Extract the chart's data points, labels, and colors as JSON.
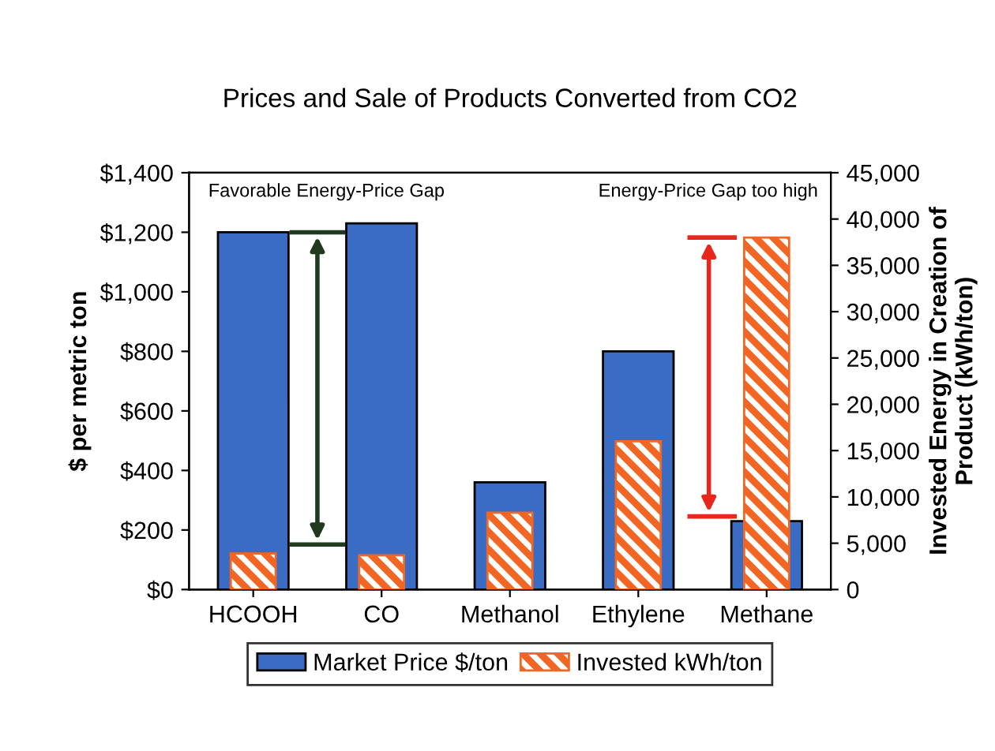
{
  "chart_data": {
    "type": "bar",
    "title": "Prices and Sale of Products Converted from CO2",
    "ylabel": "$ per metric ton",
    "y2label": "Invested Energy in Creation of\nProduct (kWh/ton)",
    "categories": [
      "HCOOH",
      "CO",
      "Methanol",
      "Ethylene",
      "Methane"
    ],
    "series": [
      {
        "name": "Market Price $/ton",
        "color": "#3b6cc4",
        "values": [
          1200,
          1230,
          360,
          800,
          230
        ]
      },
      {
        "name": "Invested kWh/ton",
        "color": "#f26522",
        "axis": "y2",
        "values": [
          3900,
          3700,
          8300,
          16000,
          38000
        ]
      }
    ],
    "ylim": [
      0,
      1400
    ],
    "yticks": [
      {
        "value": 0,
        "label": "$0"
      },
      {
        "value": 200,
        "label": "$200"
      },
      {
        "value": 400,
        "label": "$400"
      },
      {
        "value": 600,
        "label": "$600"
      },
      {
        "value": 800,
        "label": "$800"
      },
      {
        "value": 1000,
        "label": "$1,000"
      },
      {
        "value": 1200,
        "label": "$1,200"
      },
      {
        "value": 1400,
        "label": "$1,400"
      }
    ],
    "y2lim": [
      0,
      45000
    ],
    "y2ticks": [
      {
        "value": 0,
        "label": "0"
      },
      {
        "value": 5000,
        "label": "5,000"
      },
      {
        "value": 10000,
        "label": "10,000"
      },
      {
        "value": 15000,
        "label": "15,000"
      },
      {
        "value": 20000,
        "label": "20,000"
      },
      {
        "value": 25000,
        "label": "25,000"
      },
      {
        "value": 30000,
        "label": "30,000"
      },
      {
        "value": 35000,
        "label": "35,000"
      },
      {
        "value": 40000,
        "label": "40,000"
      },
      {
        "value": 45000,
        "label": "45,000"
      }
    ],
    "annotations": [
      "Favorable Energy-Price Gap",
      "Energy-Price Gap too high"
    ],
    "legend": "bottom",
    "grid": false
  }
}
